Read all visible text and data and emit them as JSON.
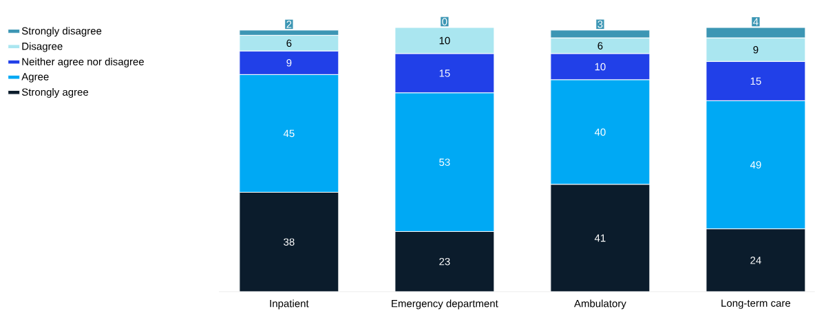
{
  "chart_data": {
    "type": "bar",
    "stacked": true,
    "data_labels": true,
    "legend": "left",
    "categories": [
      "Inpatient",
      "Emergency department",
      "Ambulatory",
      "Long-term care"
    ],
    "ylim": [
      0,
      101
    ],
    "tick_labels": "x",
    "series": [
      {
        "name": "Strongly agree",
        "color": "#0b1c2c",
        "values": [
          38,
          23,
          41,
          24
        ]
      },
      {
        "name": "Agree",
        "color": "#00a9f4",
        "values": [
          45,
          53,
          40,
          49
        ]
      },
      {
        "name": "Neither agree nor disagree",
        "color": "#2140e8",
        "values": [
          9,
          15,
          10,
          15
        ]
      },
      {
        "name": "Disagree",
        "color": "#aae6f0",
        "values": [
          6,
          10,
          6,
          9
        ]
      },
      {
        "name": "Strongly disagree",
        "color": "#3c96b4",
        "values": [
          2,
          0,
          3,
          4
        ]
      }
    ]
  }
}
